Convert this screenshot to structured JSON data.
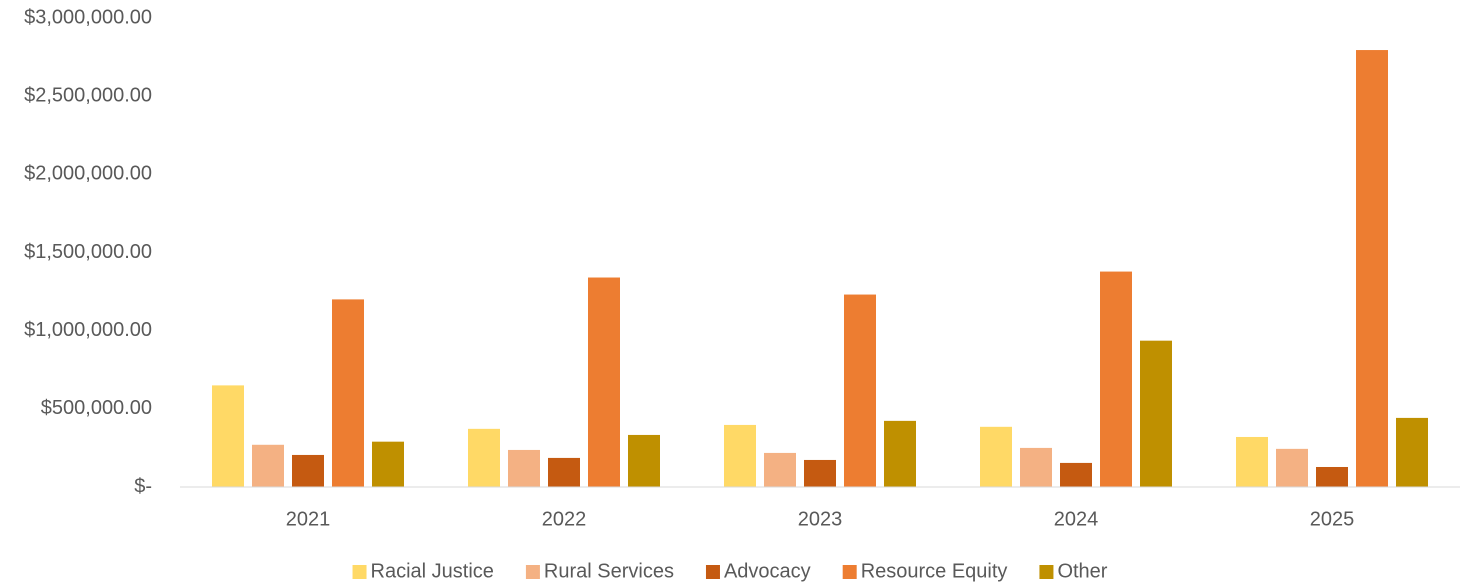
{
  "chart_data": {
    "type": "bar",
    "categories": [
      "2021",
      "2022",
      "2023",
      "2024",
      "2025"
    ],
    "series": [
      {
        "name": "Racial Justice",
        "color": "#FFD966",
        "values": [
          650000,
          372000,
          397000,
          385000,
          320000
        ]
      },
      {
        "name": "Rural Services",
        "color": "#F4B183",
        "values": [
          270000,
          237000,
          218000,
          250000,
          244000
        ]
      },
      {
        "name": "Advocacy",
        "color": "#C55A11",
        "values": [
          205000,
          186000,
          173000,
          154000,
          128000
        ]
      },
      {
        "name": "Resource Equity",
        "color": "#ED7D31",
        "values": [
          1200000,
          1340000,
          1231000,
          1378000,
          2795000
        ]
      },
      {
        "name": "Other",
        "color": "#BF9000",
        "values": [
          290000,
          333000,
          423000,
          936000,
          442000
        ]
      }
    ],
    "ylim": [
      0,
      3000000
    ],
    "yticks": [
      {
        "value": 0,
        "label": "$-"
      },
      {
        "value": 500000,
        "label": "$500,000.00"
      },
      {
        "value": 1000000,
        "label": "$1,000,000.00"
      },
      {
        "value": 1500000,
        "label": "$1,500,000.00"
      },
      {
        "value": 2000000,
        "label": "$2,000,000.00"
      },
      {
        "value": 2500000,
        "label": "$2,500,000.00"
      },
      {
        "value": 3000000,
        "label": "$3,000,000.00"
      }
    ],
    "grid": false,
    "legend": "bottom"
  }
}
